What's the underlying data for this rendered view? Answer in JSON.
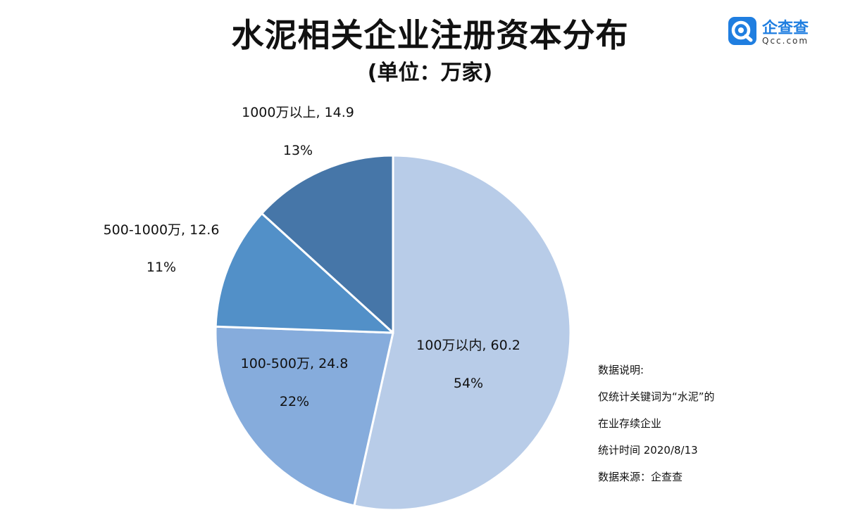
{
  "title": "水泥相关企业注册资本分布",
  "subtitle": "(单位：万家)",
  "logo": {
    "name": "企查查",
    "domain": "Qcc.com",
    "icon": "qcc-logo-icon",
    "color": "#1f7ee0"
  },
  "chart_data": {
    "type": "pie",
    "title": "水泥相关企业注册资本分布",
    "subtitle": "(单位：万家)",
    "slices": [
      {
        "name": "100万以内",
        "value": 60.2,
        "value_label": "60.2",
        "percent_label": "54%",
        "color": "#b8cce8"
      },
      {
        "name": "100-500万",
        "value": 24.8,
        "value_label": "24.8",
        "percent_label": "22%",
        "color": "#86acdc"
      },
      {
        "name": "500-1000万",
        "value": 12.6,
        "value_label": "12.6",
        "percent_label": "11%",
        "color": "#5290c8"
      },
      {
        "name": "1000万以上",
        "value": 14.9,
        "value_label": "14.9",
        "percent_label": "13%",
        "color": "#4676a8"
      }
    ],
    "start": "12 o'clock",
    "direction": "clockwise",
    "legend": "none"
  },
  "notes": [
    "数据说明:",
    "仅统计关键词为“水泥”的",
    "在业存续企业",
    "统计时间 2020/8/13",
    "数据来源：企查查"
  ]
}
